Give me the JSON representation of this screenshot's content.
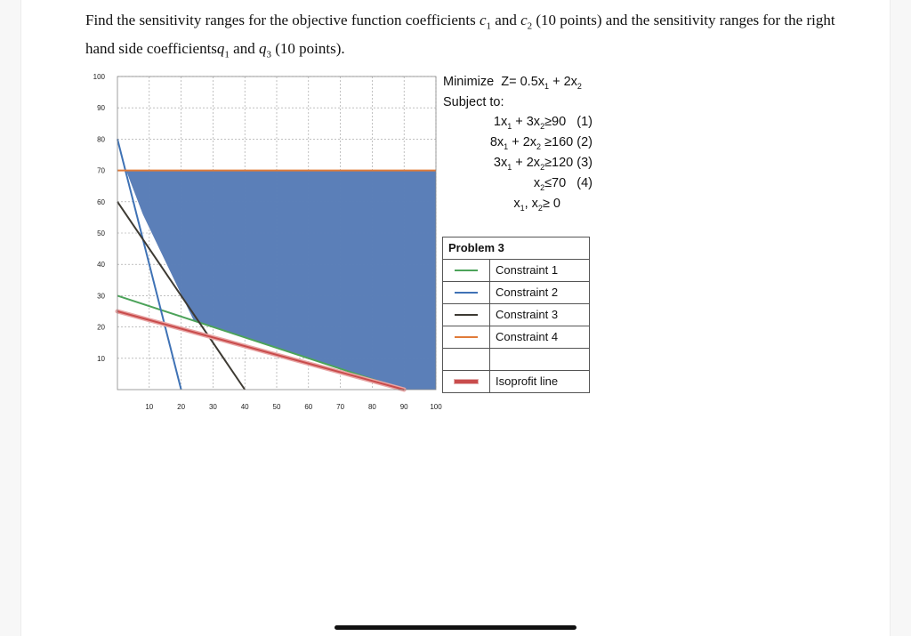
{
  "question": {
    "part1": "Find the sensitivity ranges for the objective function coefficients ",
    "c": "c",
    "sub1": "1",
    "and1": " and ",
    "sub2": "2",
    "part2": " (10 points) and the sensitivity ranges for the right hand side coefficients",
    "q": "q",
    "sub3": "3",
    "part3": " (10 points)."
  },
  "formulation": {
    "minimize": "Minimize",
    "obj_z": "Z= 0.5x",
    "obj_plus": " + 2x",
    "subject_to": "Subject to:",
    "x1_sub": "1",
    "x2_sub": "2",
    "c1_a": "1x",
    "c1_b": " + 3x",
    "c1_c": "≥90",
    "c1_n": "(1)",
    "c2_a": "8x",
    "c2_b": " + 2x",
    "c2_c": " ≥160",
    "c2_n": "(2)",
    "c3_a": "3x",
    "c3_b": " + 2x",
    "c3_c": "≥120",
    "c3_n": "(3)",
    "c4_a": "x",
    "c4_c": "≤70",
    "c4_n": "(4)",
    "c5_a": "x",
    "c5_b": ", x",
    "c5_c": "≥ 0"
  },
  "legend": {
    "title": "Problem 3",
    "items": [
      {
        "label": "Constraint 1",
        "color": "#4ca35a"
      },
      {
        "label": "Constraint 2",
        "color": "#3f72b5"
      },
      {
        "label": "Constraint 3",
        "color": "#3d3a33"
      },
      {
        "label": "Constraint 4",
        "color": "#e07b39"
      },
      {
        "label": "",
        "color": ""
      },
      {
        "label": "Isoprofit line",
        "color": "#c94c4c"
      }
    ]
  },
  "chart_data": {
    "type": "line",
    "xlim": [
      0,
      100
    ],
    "ylim": [
      0,
      100
    ],
    "x_ticks": [
      10,
      20,
      30,
      40,
      50,
      60,
      70,
      80,
      90,
      100
    ],
    "y_ticks": [
      10,
      20,
      30,
      40,
      50,
      60,
      70,
      80,
      90,
      100
    ],
    "grid": true,
    "feasible_region": {
      "color": "#5b7fb8",
      "points": [
        [
          2.75,
          70
        ],
        [
          100,
          70
        ],
        [
          100,
          0
        ],
        [
          90,
          0
        ],
        [
          24,
          22
        ],
        [
          8,
          56
        ]
      ]
    },
    "series": [
      {
        "name": "Constraint 1",
        "color": "#4ca35a",
        "x": [
          0,
          90
        ],
        "y": [
          30,
          0
        ]
      },
      {
        "name": "Constraint 2",
        "color": "#3f72b5",
        "x": [
          0,
          20
        ],
        "y": [
          80,
          0
        ]
      },
      {
        "name": "Constraint 3",
        "color": "#3d3a33",
        "x": [
          0,
          40
        ],
        "y": [
          60,
          0
        ]
      },
      {
        "name": "Constraint 4",
        "color": "#e07b39",
        "x": [
          0,
          100
        ],
        "y": [
          70,
          70
        ]
      },
      {
        "name": "Isoprofit line",
        "color": "#c94c4c",
        "x": [
          0,
          90
        ],
        "y": [
          25,
          0
        ]
      }
    ]
  }
}
